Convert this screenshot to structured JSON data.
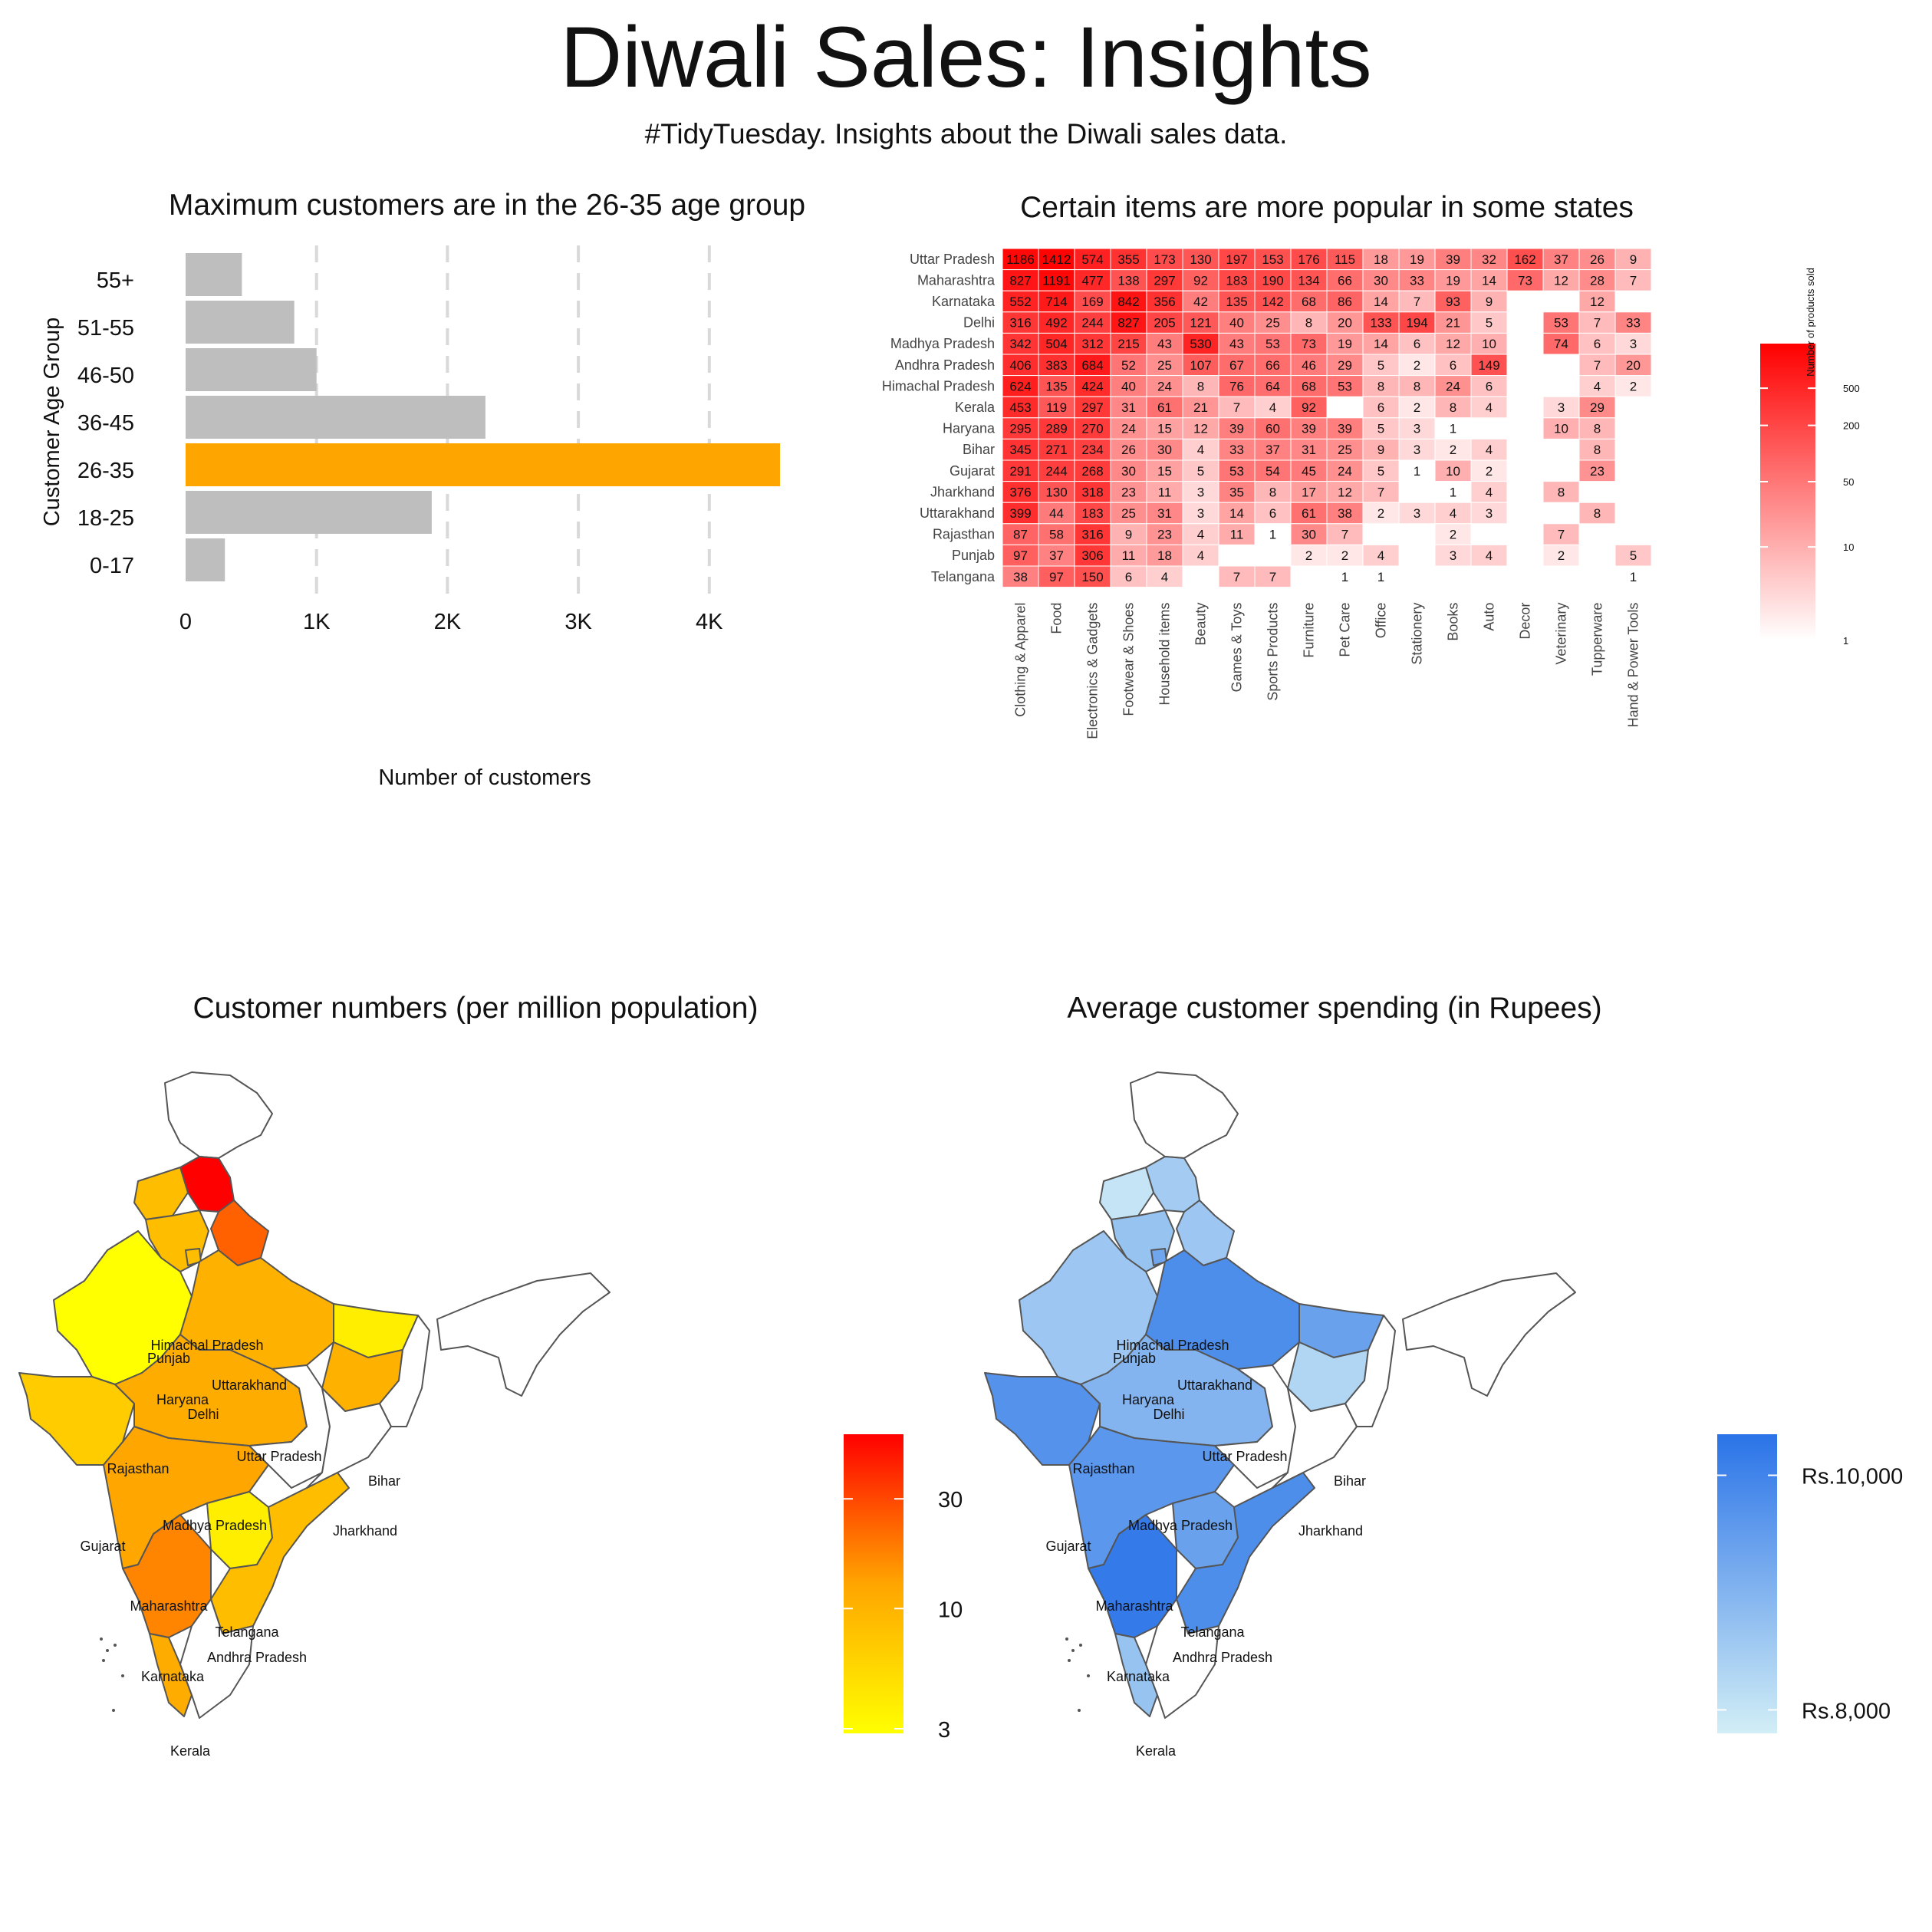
{
  "header": {
    "title": "Diwali Sales: Insights",
    "subtitle": "#TidyTuesday. Insights about the Diwali sales data."
  },
  "colors": {
    "bar_default": "#bebebe",
    "bar_highlight": "#ffa500",
    "heat_low": "#ffffff",
    "heat_high": "#ff0000",
    "map_customers_low": "#ffff00",
    "map_customers_high": "#ff0000",
    "map_spend_low": "#d2eef6",
    "map_spend_high": "#2a73e8",
    "map_border": "#555555"
  },
  "chart_data": [
    {
      "type": "bar",
      "orientation": "horizontal",
      "title": "Maximum customers are in the 26-35 age group",
      "xlabel": "Number of customers",
      "ylabel": "Customer Age Group",
      "categories": [
        "55+",
        "51-55",
        "46-50",
        "36-45",
        "26-35",
        "18-25",
        "0-17"
      ],
      "values": [
        430,
        830,
        1000,
        2290,
        4540,
        1880,
        300
      ],
      "highlight": "26-35",
      "xlim": [
        0,
        4600
      ],
      "xticks": [
        0,
        1000,
        2000,
        3000,
        4000
      ],
      "xtick_labels": [
        "0",
        "1K",
        "2K",
        "3K",
        "4K"
      ],
      "grid": "vertical dashed"
    },
    {
      "type": "heatmap",
      "title": "Certain items are more popular in some states",
      "legend_title": "Number of products sold",
      "legend_ticks": [
        1,
        10,
        50,
        200,
        500
      ],
      "scale": "log",
      "rows": [
        "Uttar Pradesh",
        "Maharashtra",
        "Karnataka",
        "Delhi",
        "Madhya Pradesh",
        "Andhra Pradesh",
        "Himachal Pradesh",
        "Kerala",
        "Haryana",
        "Bihar",
        "Gujarat",
        "Jharkhand",
        "Uttarakhand",
        "Rajasthan",
        "Punjab",
        "Telangana"
      ],
      "columns": [
        "Clothing & Apparel",
        "Food",
        "Electronics & Gadgets",
        "Footwear & Shoes",
        "Household items",
        "Beauty",
        "Games & Toys",
        "Sports Products",
        "Furniture",
        "Pet Care",
        "Office",
        "Stationery",
        "Books",
        "Auto",
        "Decor",
        "Veterinary",
        "Tupperware",
        "Hand & Power Tools"
      ],
      "values": [
        [
          1186,
          1412,
          574,
          355,
          173,
          130,
          197,
          153,
          176,
          115,
          18,
          19,
          39,
          32,
          162,
          37,
          26,
          9
        ],
        [
          827,
          1191,
          477,
          138,
          297,
          92,
          183,
          190,
          134,
          66,
          30,
          33,
          19,
          14,
          73,
          12,
          28,
          7
        ],
        [
          552,
          714,
          169,
          842,
          356,
          42,
          135,
          142,
          68,
          86,
          14,
          7,
          93,
          9,
          null,
          null,
          12,
          null
        ],
        [
          316,
          492,
          244,
          827,
          205,
          121,
          40,
          25,
          8,
          20,
          133,
          194,
          21,
          5,
          null,
          53,
          7,
          33
        ],
        [
          342,
          504,
          312,
          215,
          43,
          530,
          43,
          53,
          73,
          19,
          14,
          6,
          12,
          10,
          null,
          74,
          6,
          3
        ],
        [
          406,
          383,
          684,
          52,
          25,
          107,
          67,
          66,
          46,
          29,
          5,
          2,
          6,
          149,
          null,
          null,
          7,
          20
        ],
        [
          624,
          135,
          424,
          40,
          24,
          8,
          76,
          64,
          68,
          53,
          8,
          8,
          24,
          6,
          null,
          null,
          4,
          2
        ],
        [
          453,
          119,
          297,
          31,
          61,
          21,
          7,
          4,
          92,
          null,
          6,
          2,
          8,
          4,
          null,
          3,
          29,
          null
        ],
        [
          295,
          289,
          270,
          24,
          15,
          12,
          39,
          60,
          39,
          39,
          5,
          3,
          1,
          null,
          null,
          10,
          8,
          null
        ],
        [
          345,
          271,
          234,
          26,
          30,
          4,
          33,
          37,
          31,
          25,
          9,
          3,
          2,
          4,
          null,
          null,
          8,
          null
        ],
        [
          291,
          244,
          268,
          30,
          15,
          5,
          53,
          54,
          45,
          24,
          5,
          1,
          10,
          2,
          null,
          null,
          23,
          null
        ],
        [
          376,
          130,
          318,
          23,
          11,
          3,
          35,
          8,
          17,
          12,
          7,
          null,
          1,
          4,
          null,
          8,
          null,
          null
        ],
        [
          399,
          44,
          183,
          25,
          31,
          3,
          14,
          6,
          61,
          38,
          2,
          3,
          4,
          3,
          null,
          null,
          8,
          null
        ],
        [
          87,
          58,
          316,
          9,
          23,
          4,
          11,
          1,
          30,
          7,
          null,
          null,
          2,
          null,
          null,
          7,
          null,
          null
        ],
        [
          97,
          37,
          306,
          11,
          18,
          4,
          null,
          null,
          2,
          2,
          4,
          null,
          3,
          4,
          null,
          2,
          null,
          5
        ],
        [
          38,
          97,
          150,
          6,
          4,
          null,
          7,
          7,
          null,
          1,
          1,
          null,
          null,
          null,
          null,
          null,
          null,
          1
        ]
      ]
    },
    {
      "type": "map",
      "title": "Customer numbers (per million population)",
      "legend_ticks": [
        3,
        10,
        30
      ],
      "scale": "log",
      "states": [
        {
          "name": "Himachal Pradesh",
          "value": 60
        },
        {
          "name": "Punjab",
          "value": 9
        },
        {
          "name": "Uttarakhand",
          "value": 25
        },
        {
          "name": "Haryana",
          "value": 9
        },
        {
          "name": "Delhi",
          "value": 9
        },
        {
          "name": "Rajasthan",
          "value": 3
        },
        {
          "name": "Uttar Pradesh",
          "value": 11
        },
        {
          "name": "Bihar",
          "value": 4
        },
        {
          "name": "Gujarat",
          "value": 7
        },
        {
          "name": "Madhya Pradesh",
          "value": 12
        },
        {
          "name": "Jharkhand",
          "value": 11
        },
        {
          "name": "Maharashtra",
          "value": 13
        },
        {
          "name": "Telangana",
          "value": 4
        },
        {
          "name": "Andhra Pradesh",
          "value": 9
        },
        {
          "name": "Karnataka",
          "value": 18
        },
        {
          "name": "Kerala",
          "value": 12
        }
      ]
    },
    {
      "type": "map",
      "title": "Average customer spending (in Rupees)",
      "legend_ticks": [
        "Rs.8,000",
        "Rs.10,000"
      ],
      "legend_values": [
        8000,
        10000
      ],
      "states": [
        {
          "name": "Himachal Pradesh",
          "value": 8500
        },
        {
          "name": "Punjab",
          "value": 8000
        },
        {
          "name": "Uttarakhand",
          "value": 8600
        },
        {
          "name": "Haryana",
          "value": 8700
        },
        {
          "name": "Delhi",
          "value": 9300
        },
        {
          "name": "Rajasthan",
          "value": 8600
        },
        {
          "name": "Uttar Pradesh",
          "value": 9800
        },
        {
          "name": "Bihar",
          "value": 9400
        },
        {
          "name": "Gujarat",
          "value": 9700
        },
        {
          "name": "Madhya Pradesh",
          "value": 9000
        },
        {
          "name": "Jharkhand",
          "value": 8300
        },
        {
          "name": "Maharashtra",
          "value": 9600
        },
        {
          "name": "Telangana",
          "value": 9400
        },
        {
          "name": "Andhra Pradesh",
          "value": 9800
        },
        {
          "name": "Karnataka",
          "value": 10200
        },
        {
          "name": "Kerala",
          "value": 8700
        }
      ]
    }
  ]
}
